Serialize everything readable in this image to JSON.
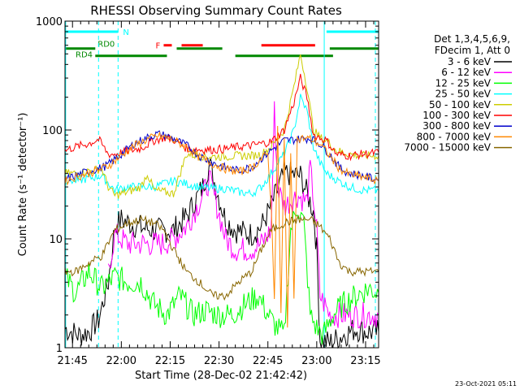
{
  "chart_data": {
    "type": "line",
    "title": "RHESSI Observing Summary Count Rates",
    "xlabel": "Start Time (28-Dec-02 21:42:42)",
    "ylabel": "Count Rate (s⁻¹ detector⁻¹)",
    "yscale": "log",
    "ylim": [
      1,
      1000
    ],
    "xlim_minutes_after_2140": [
      2.7,
      99.0
    ],
    "x_ticks": [
      {
        "label": "21:45",
        "value": 5
      },
      {
        "label": "22:00",
        "value": 20
      },
      {
        "label": "22:15",
        "value": 35
      },
      {
        "label": "22:30",
        "value": 50
      },
      {
        "label": "22:45",
        "value": 65
      },
      {
        "label": "23:00",
        "value": 80
      },
      {
        "label": "23:15",
        "value": 95
      }
    ],
    "y_ticks": [
      {
        "label": "1",
        "value": 1
      },
      {
        "label": "10",
        "value": 10
      },
      {
        "label": "100",
        "value": 100
      },
      {
        "label": "1000",
        "value": 1000
      }
    ],
    "legend": {
      "header": [
        "Det 1,3,4,5,6,9,",
        "FDecim 1, Att 0"
      ],
      "placement": "right"
    },
    "series": [
      {
        "name": "3 - 6 keV",
        "color": "#000000",
        "points": [
          [
            2.7,
            1.5
          ],
          [
            7,
            1.3
          ],
          [
            10,
            1.4
          ],
          [
            13,
            1.8
          ],
          [
            16,
            4
          ],
          [
            18,
            13
          ],
          [
            20,
            15
          ],
          [
            25,
            13
          ],
          [
            30,
            12
          ],
          [
            33,
            12
          ],
          [
            36,
            12
          ],
          [
            40,
            16
          ],
          [
            45,
            30
          ],
          [
            47,
            50
          ],
          [
            49,
            30
          ],
          [
            52,
            15
          ],
          [
            55,
            12
          ],
          [
            60,
            11
          ],
          [
            63,
            13
          ],
          [
            66,
            20
          ],
          [
            70,
            40
          ],
          [
            75,
            38
          ],
          [
            79,
            18
          ],
          [
            80,
            8
          ],
          [
            81,
            1.2
          ],
          [
            84,
            1.1
          ],
          [
            88,
            1.3
          ],
          [
            92,
            1.5
          ],
          [
            95,
            1.4
          ],
          [
            99,
            1.4
          ]
        ]
      },
      {
        "name": "6 - 12 keV",
        "color": "#ff00ff",
        "points": [
          [
            16,
            5
          ],
          [
            18,
            11
          ],
          [
            22,
            9
          ],
          [
            28,
            9
          ],
          [
            33,
            9
          ],
          [
            36,
            10
          ],
          [
            40,
            13
          ],
          [
            45,
            25
          ],
          [
            47,
            35
          ],
          [
            49,
            22
          ],
          [
            52,
            10
          ],
          [
            55,
            8
          ],
          [
            60,
            8
          ],
          [
            63,
            9
          ],
          [
            66,
            12
          ],
          [
            67,
            150
          ],
          [
            68,
            30
          ],
          [
            70,
            20
          ],
          [
            74,
            25
          ],
          [
            77,
            22
          ],
          [
            78,
            45
          ],
          [
            80,
            12
          ],
          [
            81,
            3
          ],
          [
            84,
            2
          ],
          [
            88,
            2
          ],
          [
            92,
            2
          ],
          [
            95,
            2
          ],
          [
            99,
            2
          ]
        ]
      },
      {
        "name": "12 - 25 keV",
        "color": "#00ff00",
        "points": [
          [
            2.7,
            4.5
          ],
          [
            6,
            3.2
          ],
          [
            10,
            5
          ],
          [
            14,
            3.5
          ],
          [
            18,
            4.5
          ],
          [
            22,
            4
          ],
          [
            26,
            4
          ],
          [
            30,
            2.5
          ],
          [
            34,
            2
          ],
          [
            38,
            3
          ],
          [
            42,
            2
          ],
          [
            46,
            2.2
          ],
          [
            50,
            2
          ],
          [
            54,
            2
          ],
          [
            58,
            2.5
          ],
          [
            62,
            3
          ],
          [
            64,
            2.3
          ],
          [
            66,
            1.8
          ],
          [
            68,
            1.5
          ],
          [
            70,
            1.3
          ],
          [
            72,
            12
          ],
          [
            74,
            20
          ],
          [
            76,
            14
          ],
          [
            78,
            2
          ],
          [
            80,
            1.5
          ],
          [
            82,
            1.3
          ],
          [
            85,
            2
          ],
          [
            88,
            2.5
          ],
          [
            92,
            3
          ],
          [
            96,
            3.5
          ],
          [
            99,
            3.2
          ]
        ]
      },
      {
        "name": "25 - 50 keV",
        "color": "#00ffff",
        "points": [
          [
            2.7,
            35
          ],
          [
            6,
            34
          ],
          [
            10,
            36
          ],
          [
            14,
            38
          ],
          [
            18,
            28
          ],
          [
            22,
            30
          ],
          [
            26,
            30
          ],
          [
            30,
            30
          ],
          [
            33,
            32
          ],
          [
            36,
            34
          ],
          [
            40,
            32
          ],
          [
            44,
            30
          ],
          [
            48,
            29
          ],
          [
            52,
            29
          ],
          [
            56,
            27
          ],
          [
            60,
            26
          ],
          [
            63,
            30
          ],
          [
            66,
            40
          ],
          [
            70,
            60
          ],
          [
            73,
            100
          ],
          [
            75,
            200
          ],
          [
            77,
            150
          ],
          [
            79,
            70
          ],
          [
            81,
            50
          ],
          [
            83,
            40
          ],
          [
            86,
            35
          ],
          [
            90,
            30
          ],
          [
            94,
            28
          ],
          [
            99,
            28
          ]
        ]
      },
      {
        "name": "50 - 100 keV",
        "color": "#cccc00",
        "points": [
          [
            2.7,
            40
          ],
          [
            6,
            40
          ],
          [
            10,
            42
          ],
          [
            14,
            44
          ],
          [
            16,
            30
          ],
          [
            18,
            25
          ],
          [
            22,
            27
          ],
          [
            26,
            30
          ],
          [
            28,
            40
          ],
          [
            30,
            28
          ],
          [
            33,
            27
          ],
          [
            36,
            26
          ],
          [
            40,
            60
          ],
          [
            44,
            58
          ],
          [
            48,
            57
          ],
          [
            52,
            57
          ],
          [
            56,
            58
          ],
          [
            60,
            58
          ],
          [
            63,
            60
          ],
          [
            66,
            70
          ],
          [
            70,
            100
          ],
          [
            73,
            250
          ],
          [
            75,
            500
          ],
          [
            77,
            250
          ],
          [
            79,
            100
          ],
          [
            81,
            85
          ],
          [
            83,
            80
          ],
          [
            86,
            65
          ],
          [
            90,
            60
          ],
          [
            94,
            58
          ],
          [
            99,
            58
          ]
        ]
      },
      {
        "name": "100 - 300 keV",
        "color": "#ff0000",
        "points": [
          [
            2.7,
            65
          ],
          [
            6,
            70
          ],
          [
            10,
            75
          ],
          [
            13,
            82
          ],
          [
            16,
            60
          ],
          [
            18,
            60
          ],
          [
            22,
            64
          ],
          [
            26,
            68
          ],
          [
            30,
            80
          ],
          [
            33,
            85
          ],
          [
            36,
            82
          ],
          [
            40,
            68
          ],
          [
            44,
            66
          ],
          [
            48,
            66
          ],
          [
            52,
            67
          ],
          [
            56,
            70
          ],
          [
            60,
            72
          ],
          [
            63,
            75
          ],
          [
            66,
            78
          ],
          [
            70,
            100
          ],
          [
            73,
            180
          ],
          [
            75,
            300
          ],
          [
            77,
            200
          ],
          [
            79,
            90
          ],
          [
            81,
            85
          ],
          [
            83,
            80
          ],
          [
            86,
            60
          ],
          [
            90,
            58
          ],
          [
            94,
            60
          ],
          [
            99,
            62
          ]
        ]
      },
      {
        "name": "300 - 800 keV",
        "color": "#0000cc",
        "points": [
          [
            2.7,
            35
          ],
          [
            6,
            38
          ],
          [
            10,
            42
          ],
          [
            13,
            44
          ],
          [
            16,
            48
          ],
          [
            20,
            60
          ],
          [
            24,
            75
          ],
          [
            28,
            85
          ],
          [
            31,
            92
          ],
          [
            34,
            88
          ],
          [
            37,
            80
          ],
          [
            40,
            72
          ],
          [
            44,
            58
          ],
          [
            48,
            50
          ],
          [
            52,
            45
          ],
          [
            56,
            42
          ],
          [
            60,
            46
          ],
          [
            63,
            55
          ],
          [
            66,
            65
          ],
          [
            70,
            80
          ],
          [
            74,
            82
          ],
          [
            78,
            84
          ],
          [
            81,
            75
          ],
          [
            84,
            60
          ],
          [
            87,
            45
          ],
          [
            90,
            40
          ],
          [
            94,
            38
          ],
          [
            97,
            36
          ],
          [
            99,
            35
          ]
        ]
      },
      {
        "name": "800 - 7000 keV",
        "color": "#ff8800",
        "points": [
          [
            2.7,
            34
          ],
          [
            6,
            37
          ],
          [
            10,
            40
          ],
          [
            13,
            43
          ],
          [
            16,
            47
          ],
          [
            20,
            58
          ],
          [
            24,
            72
          ],
          [
            28,
            82
          ],
          [
            31,
            88
          ],
          [
            34,
            85
          ],
          [
            37,
            78
          ],
          [
            40,
            70
          ],
          [
            44,
            56
          ],
          [
            48,
            49
          ],
          [
            52,
            44
          ],
          [
            56,
            41
          ],
          [
            60,
            45
          ],
          [
            63,
            54
          ],
          [
            65,
            60
          ],
          [
            66,
            20
          ],
          [
            67,
            3
          ],
          [
            68,
            100
          ],
          [
            69,
            2
          ],
          [
            70,
            80
          ],
          [
            71,
            1.5
          ],
          [
            72,
            60
          ],
          [
            73,
            3
          ],
          [
            74,
            82
          ],
          [
            76,
            84
          ],
          [
            78,
            83
          ],
          [
            81,
            74
          ],
          [
            84,
            58
          ],
          [
            87,
            44
          ],
          [
            90,
            39
          ],
          [
            94,
            37
          ],
          [
            97,
            35
          ],
          [
            99,
            34
          ]
        ]
      },
      {
        "name": "7000 - 15000 keV",
        "color": "#886600",
        "points": [
          [
            2.7,
            5
          ],
          [
            6,
            5
          ],
          [
            10,
            6
          ],
          [
            14,
            7
          ],
          [
            18,
            12
          ],
          [
            22,
            14
          ],
          [
            26,
            15
          ],
          [
            30,
            14
          ],
          [
            33,
            12
          ],
          [
            36,
            8
          ],
          [
            40,
            5
          ],
          [
            44,
            4
          ],
          [
            48,
            3
          ],
          [
            52,
            3
          ],
          [
            56,
            4
          ],
          [
            60,
            5
          ],
          [
            63,
            8
          ],
          [
            66,
            12
          ],
          [
            70,
            14
          ],
          [
            74,
            15
          ],
          [
            78,
            15
          ],
          [
            81,
            13
          ],
          [
            84,
            10
          ],
          [
            87,
            6
          ],
          [
            90,
            5
          ],
          [
            94,
            5
          ],
          [
            97,
            5
          ],
          [
            99,
            5
          ]
        ]
      }
    ],
    "annotations": {
      "night_bars": {
        "label": "N",
        "color": "#00ffff",
        "level": 800,
        "intervals": [
          [
            2.7,
            19
          ],
          [
            83,
            99
          ]
        ]
      },
      "flare_bars": {
        "label": "F",
        "color": "#ff0000",
        "level": 600,
        "intervals": [
          [
            33,
            35.5
          ],
          [
            38.5,
            45
          ],
          [
            63,
            79.5
          ]
        ]
      },
      "saa_bars": {
        "color": "#008800",
        "upper": {
          "label": "RD0",
          "level": 560,
          "intervals": [
            [
              2.7,
              12
            ],
            [
              37,
              51
            ],
            [
              84,
              99
            ]
          ]
        },
        "lower": {
          "label": "RD4",
          "level": 480,
          "intervals": [
            [
              12,
              34
            ],
            [
              55,
              85
            ]
          ]
        }
      },
      "vlines_cyan_solid": [
        2.9,
        82.3
      ],
      "vlines_cyan_dashed": [
        13,
        19,
        98
      ]
    },
    "footer_timestamp": "23-Oct-2021 05:11"
  }
}
